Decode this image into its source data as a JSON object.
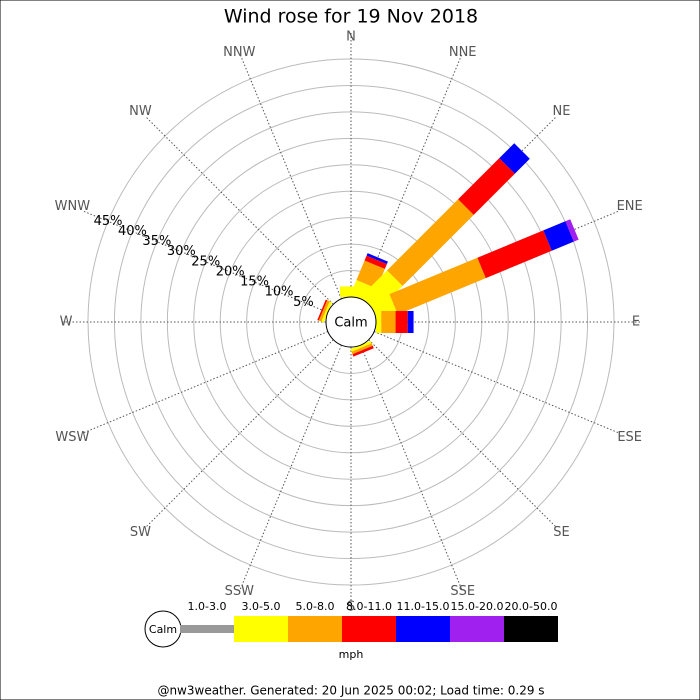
{
  "chart_data": {
    "type": "windrose",
    "title": "Wind rose for 19 Nov 2018",
    "directions": [
      "N",
      "NNE",
      "NE",
      "ENE",
      "E",
      "ESE",
      "SE",
      "SSE",
      "S",
      "SSW",
      "SW",
      "WSW",
      "W",
      "WNW",
      "NW",
      "NNW"
    ],
    "series": [
      {
        "name": "1.0-3.0",
        "color": "#999999",
        "values": [
          0,
          0,
          0,
          0,
          0,
          0,
          0,
          0,
          0,
          0,
          0,
          0,
          0,
          0,
          0,
          0
        ]
      },
      {
        "name": "3.0-5.0",
        "color": "#ffff00",
        "values": [
          2,
          3,
          7,
          4,
          1,
          0,
          0,
          0.5,
          0,
          0,
          0,
          0,
          0,
          0.5,
          0,
          0
        ]
      },
      {
        "name": "5.0-8.0",
        "color": "#ffa500",
        "values": [
          0,
          4,
          19,
          18,
          2.7,
          0,
          0,
          0.5,
          0,
          0,
          0,
          0,
          0,
          0.5,
          0,
          0
        ]
      },
      {
        "name": "8.0-11.0",
        "color": "#ff0000",
        "values": [
          0,
          1,
          11,
          13.5,
          2.3,
          0,
          0,
          0.5,
          0,
          0,
          0,
          0,
          0,
          0.3,
          0,
          0
        ]
      },
      {
        "name": "11.0-15.0",
        "color": "#0000ff",
        "values": [
          0,
          0.5,
          4,
          4.5,
          1.1,
          0,
          0,
          0,
          0,
          0,
          0,
          0,
          0,
          0,
          0,
          0
        ]
      },
      {
        "name": "15.0-20.0",
        "color": "#a020f0",
        "values": [
          0,
          0,
          0,
          1,
          0,
          0,
          0,
          0,
          0,
          0,
          0,
          0,
          0,
          0,
          0,
          0
        ]
      },
      {
        "name": "20.0-50.0",
        "color": "#000000",
        "values": [
          0,
          0,
          0,
          0,
          0,
          0,
          0,
          0,
          0,
          0,
          0,
          0,
          0,
          0,
          0,
          0
        ]
      }
    ],
    "ylim": [
      0,
      45
    ],
    "yticks": [
      {
        "value": 5,
        "label": "5%"
      },
      {
        "value": 10,
        "label": "10%"
      },
      {
        "value": 15,
        "label": "15%"
      },
      {
        "value": 20,
        "label": "20%"
      },
      {
        "value": 25,
        "label": "25%"
      },
      {
        "value": 30,
        "label": "30%"
      },
      {
        "value": 35,
        "label": "35%"
      },
      {
        "value": 40,
        "label": "40%"
      },
      {
        "value": 45,
        "label": "45%"
      }
    ],
    "calm_label": "Calm",
    "unit": "mph"
  },
  "footer": "@nw3weather. Generated: 20 Jun 2025 00:02; Load time: 0.29 s"
}
